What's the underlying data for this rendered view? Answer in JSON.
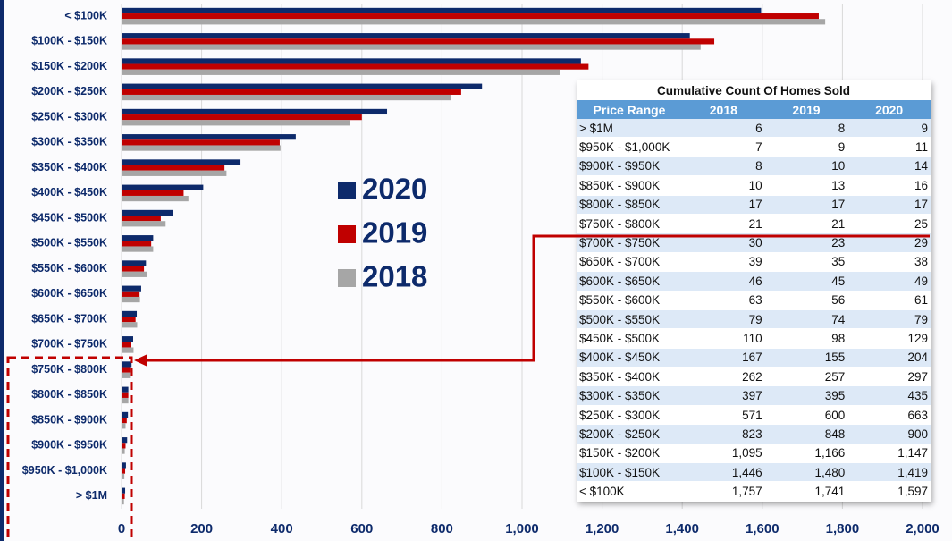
{
  "chart_data": {
    "type": "hbar",
    "categories": [
      "< $100K",
      "$100K - $150K",
      "$150K - $200K",
      "$200K - $250K",
      "$250K - $300K",
      "$300K - $350K",
      "$350K - $400K",
      "$400K - $450K",
      "$450K - $500K",
      "$500K - $550K",
      "$550K - $600K",
      "$600K - $650K",
      "$650K - $700K",
      "$700K - $750K",
      "$750K - $800K",
      "$800K - $850K",
      "$850K - $900K",
      "$900K - $950K",
      "$950K - $1,000K",
      "> $1M"
    ],
    "series": [
      {
        "name": "2020",
        "color": "#0d2a6b",
        "values": [
          1597,
          1419,
          1147,
          900,
          663,
          435,
          297,
          204,
          129,
          79,
          61,
          49,
          38,
          29,
          25,
          17,
          16,
          14,
          11,
          9
        ]
      },
      {
        "name": "2019",
        "color": "#c00000",
        "values": [
          1741,
          1480,
          1166,
          848,
          600,
          395,
          257,
          155,
          98,
          74,
          56,
          45,
          35,
          23,
          21,
          17,
          13,
          10,
          9,
          8
        ]
      },
      {
        "name": "2018",
        "color": "#a6a6a6",
        "values": [
          1757,
          1446,
          1095,
          823,
          571,
          397,
          262,
          167,
          110,
          79,
          63,
          46,
          39,
          30,
          21,
          17,
          10,
          8,
          7,
          6
        ]
      }
    ],
    "xlim": [
      0,
      2000
    ],
    "xticks": [
      0,
      200,
      400,
      600,
      800,
      {
        "value": 1000,
        "label": "1,000"
      },
      {
        "value": 1200,
        "label": "1,200"
      },
      {
        "value": 1400,
        "label": "1,400"
      },
      {
        "value": 1600,
        "label": "1,600"
      },
      {
        "value": 1800,
        "label": "1,800"
      },
      {
        "value": 2000,
        "label": "2,000"
      }
    ],
    "grid": true
  },
  "table": {
    "title": "Cumulative Count Of Homes Sold",
    "header": [
      "Price Range",
      "2018",
      "2019",
      "2020"
    ],
    "rows": [
      [
        "> $1M",
        "6",
        "8",
        "9"
      ],
      [
        "$950K - $1,000K",
        "7",
        "9",
        "11"
      ],
      [
        "$900K - $950K",
        "8",
        "10",
        "14"
      ],
      [
        "$850K - $900K",
        "10",
        "13",
        "16"
      ],
      [
        "$800K - $850K",
        "17",
        "17",
        "17"
      ],
      [
        "$750K - $800K",
        "21",
        "21",
        "25"
      ],
      [
        "$700K - $750K",
        "30",
        "23",
        "29"
      ],
      [
        "$650K - $700K",
        "39",
        "35",
        "38"
      ],
      [
        "$600K - $650K",
        "46",
        "45",
        "49"
      ],
      [
        "$550K - $600K",
        "63",
        "56",
        "61"
      ],
      [
        "$500K - $550K",
        "79",
        "74",
        "79"
      ],
      [
        "$450K - $500K",
        "110",
        "98",
        "129"
      ],
      [
        "$400K - $450K",
        "167",
        "155",
        "204"
      ],
      [
        "$350K - $400K",
        "262",
        "257",
        "297"
      ],
      [
        "$300K - $350K",
        "397",
        "395",
        "435"
      ],
      [
        "$250K - $300K",
        "571",
        "600",
        "663"
      ],
      [
        "$200K - $250K",
        "823",
        "848",
        "900"
      ],
      [
        "$150K - $200K",
        "1,095",
        "1,166",
        "1,147"
      ],
      [
        "$100K - $150K",
        "1,446",
        "1,480",
        "1,419"
      ],
      [
        "< $100K",
        "1,757",
        "1,741",
        "1,597"
      ]
    ]
  }
}
